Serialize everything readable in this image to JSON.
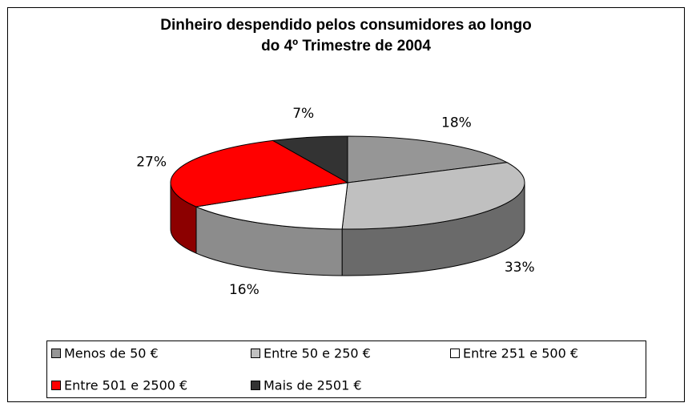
{
  "chart_data": {
    "type": "pie3d",
    "title": [
      "Dinheiro despendido pelos consumidores ao longo",
      "do 4º Trimestre de 2004"
    ],
    "categories": [
      "Menos de 50 €",
      "Entre 50 e 250 €",
      "Entre 251 e 500 €",
      "Entre 501 e 2500 €",
      "Mais de 2501 €"
    ],
    "values": [
      18,
      33,
      16,
      27,
      7
    ],
    "value_labels": [
      "18%",
      "33%",
      "16%",
      "27%",
      "7%"
    ],
    "colors": [
      "#969696",
      "#c0c0c0",
      "#ffffff",
      "#ff0000",
      "#333333"
    ],
    "legend": "bottom"
  }
}
